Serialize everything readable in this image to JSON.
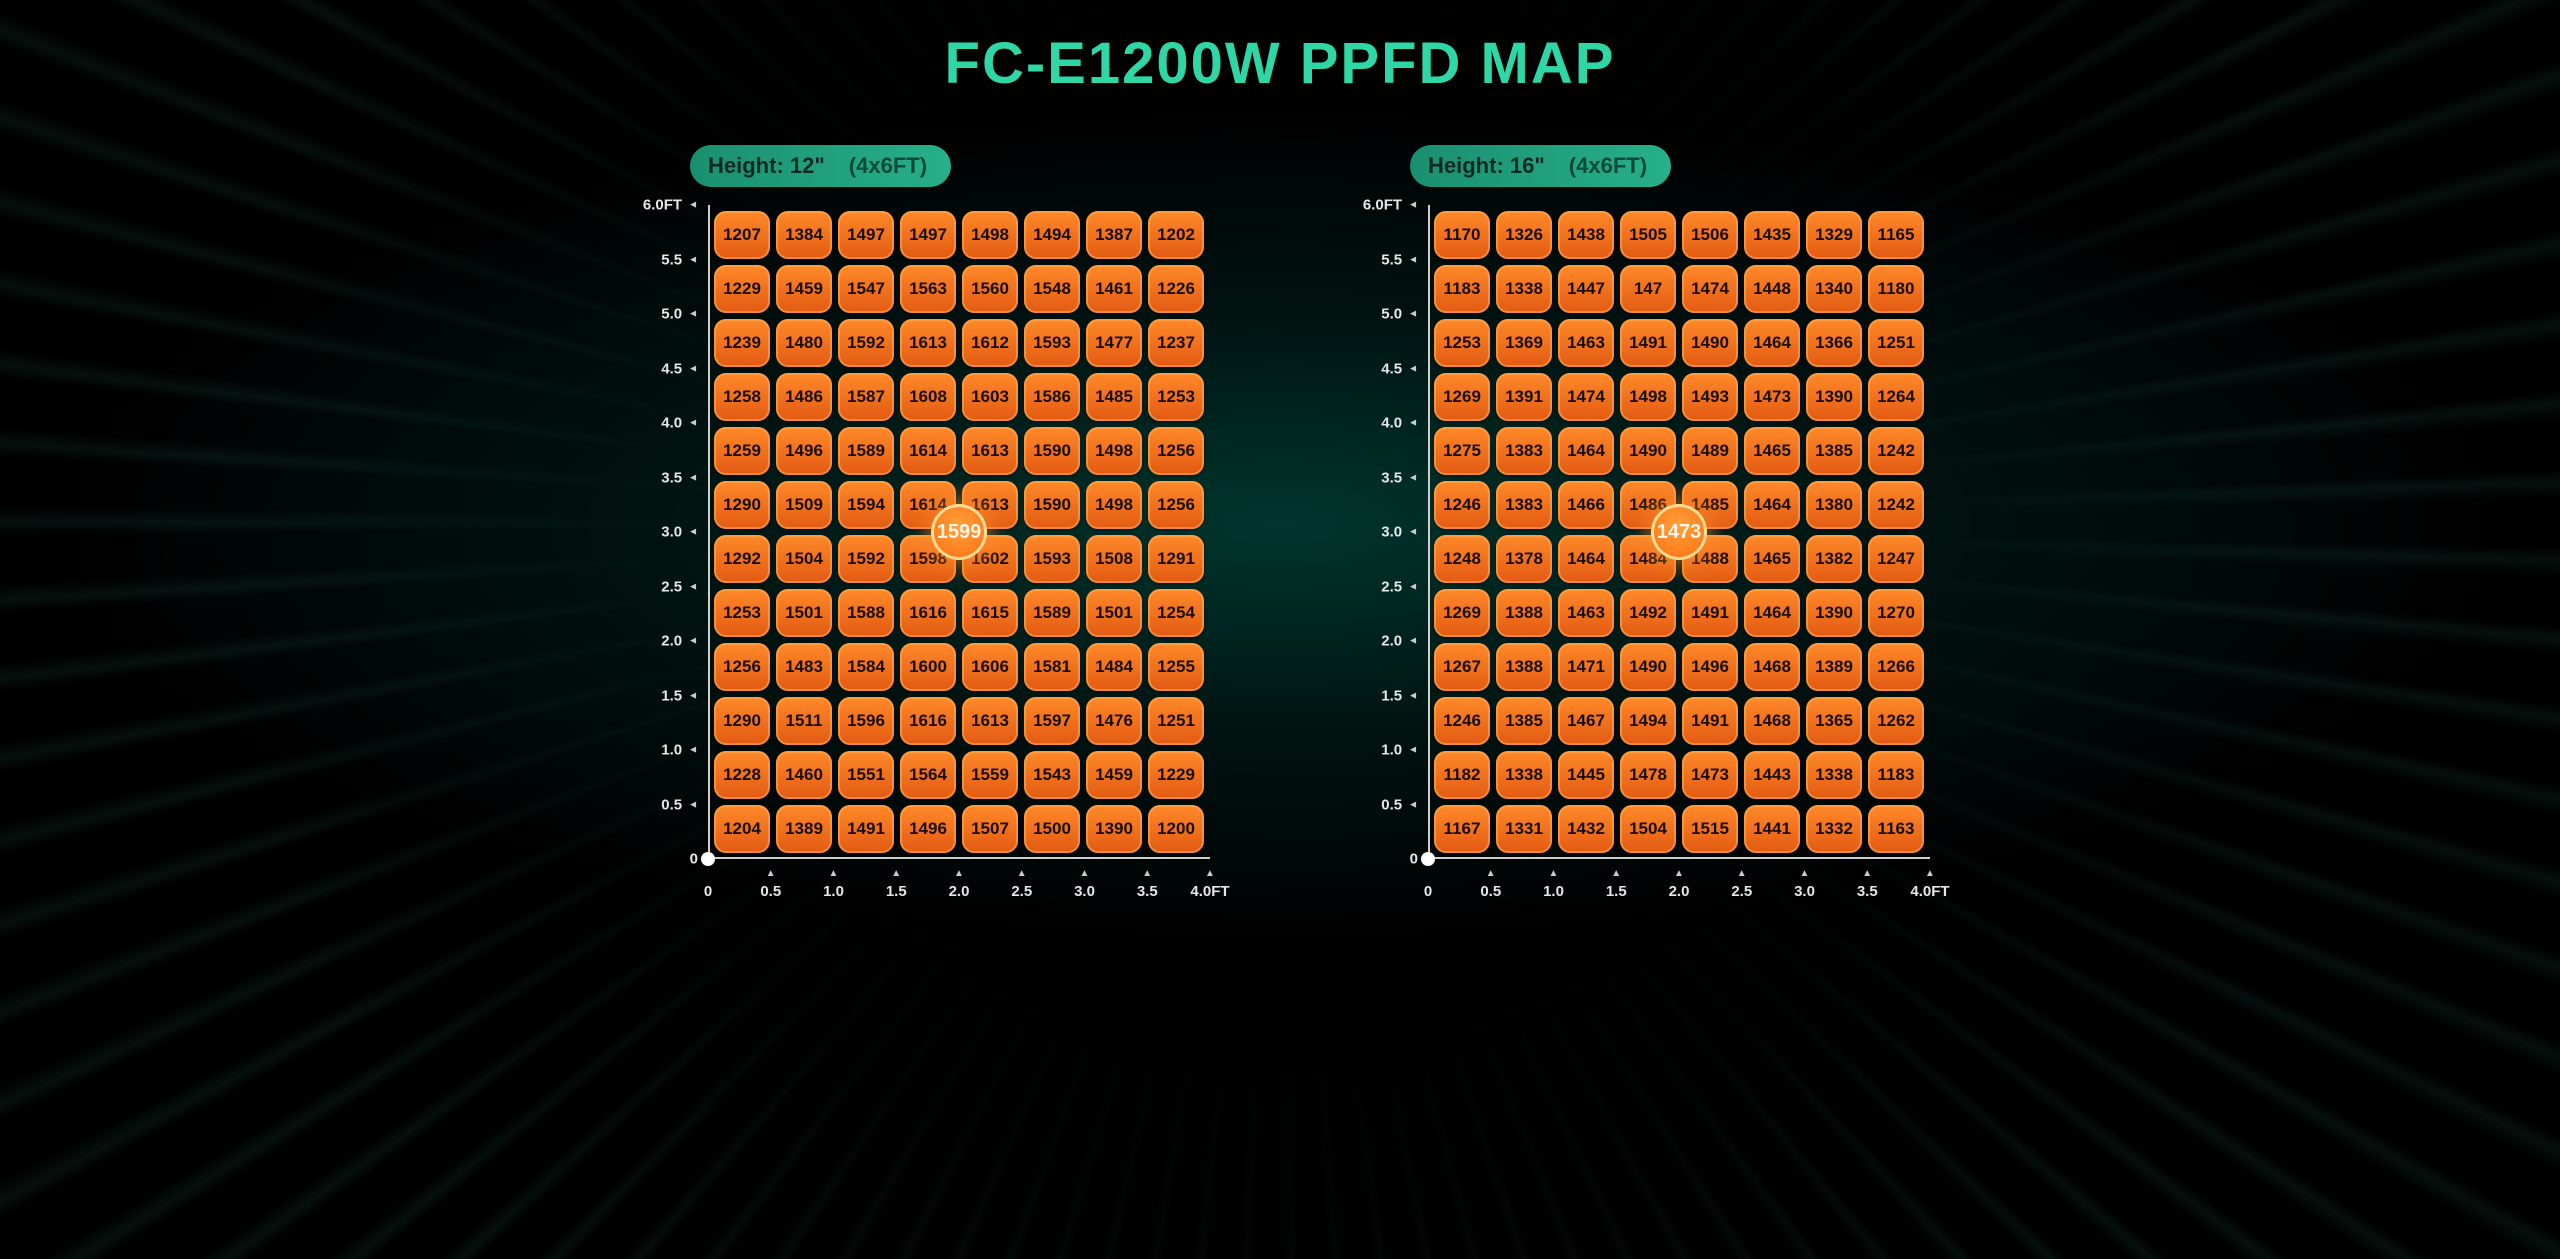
{
  "title": "FC-E1200W PPFD MAP",
  "title_color": "#2fd6a6",
  "title_fontsize": 58,
  "background": {
    "base": "#000000",
    "glow": "#0d3a32",
    "ray_color": "#4fc9a8"
  },
  "cell_style": {
    "width": 56,
    "height": 48,
    "radius": 12,
    "fill_top": "#ff8a2a",
    "fill_bottom": "#e25a12",
    "border": "#ffb060",
    "text_color": "#1a0e02",
    "fontsize": 17
  },
  "badge_style": {
    "bg_left": "#1a8f6f",
    "bg_right": "#27b08a",
    "text_bold": "#072a20",
    "text_dim": "#0b4a38",
    "fontsize": 22
  },
  "center_badge_style": {
    "size": 56,
    "fill_inner": "#ffa23a",
    "fill_outer": "#ff6a10",
    "text_color": "#fff6e8",
    "fontsize": 20
  },
  "axis": {
    "color": "#e6e6e6",
    "line_color": "#cfcfcf",
    "y_labels": [
      "6.0FT",
      "5.5",
      "5.0",
      "4.5",
      "4.0",
      "3.5",
      "3.0",
      "2.5",
      "2.0",
      "1.5",
      "1.0",
      "0.5",
      "0"
    ],
    "x_labels": [
      "0",
      "0.5",
      "1.0",
      "1.5",
      "2.0",
      "2.5",
      "3.0",
      "3.5",
      "4.0FT"
    ]
  },
  "panels": [
    {
      "badge_bold": "Height: 12\"",
      "badge_dim": "(4x6FT)",
      "center_value": "1599",
      "cols": 8,
      "rows": 12,
      "data": [
        [
          "1207",
          "1384",
          "1497",
          "1497",
          "1498",
          "1494",
          "1387",
          "1202"
        ],
        [
          "1229",
          "1459",
          "1547",
          "1563",
          "1560",
          "1548",
          "1461",
          "1226"
        ],
        [
          "1239",
          "1480",
          "1592",
          "1613",
          "1612",
          "1593",
          "1477",
          "1237"
        ],
        [
          "1258",
          "1486",
          "1587",
          "1608",
          "1603",
          "1586",
          "1485",
          "1253"
        ],
        [
          "1259",
          "1496",
          "1589",
          "1614",
          "1613",
          "1590",
          "1498",
          "1256"
        ],
        [
          "1290",
          "1509",
          "1594",
          "1614",
          "1613",
          "1590",
          "1498",
          "1256"
        ],
        [
          "1292",
          "1504",
          "1592",
          "1598",
          "1602",
          "1593",
          "1508",
          "1291"
        ],
        [
          "1253",
          "1501",
          "1588",
          "1616",
          "1615",
          "1589",
          "1501",
          "1254"
        ],
        [
          "1256",
          "1483",
          "1584",
          "1600",
          "1606",
          "1581",
          "1484",
          "1255"
        ],
        [
          "1290",
          "1511",
          "1596",
          "1616",
          "1613",
          "1597",
          "1476",
          "1251"
        ],
        [
          "1228",
          "1460",
          "1551",
          "1564",
          "1559",
          "1543",
          "1459",
          "1229"
        ],
        [
          "1204",
          "1389",
          "1491",
          "1496",
          "1507",
          "1500",
          "1390",
          "1200"
        ]
      ]
    },
    {
      "badge_bold": "Height: 16\"",
      "badge_dim": "(4x6FT)",
      "center_value": "1473",
      "cols": 8,
      "rows": 12,
      "data": [
        [
          "1170",
          "1326",
          "1438",
          "1505",
          "1506",
          "1435",
          "1329",
          "1165"
        ],
        [
          "1183",
          "1338",
          "1447",
          "147",
          "1474",
          "1448",
          "1340",
          "1180"
        ],
        [
          "1253",
          "1369",
          "1463",
          "1491",
          "1490",
          "1464",
          "1366",
          "1251"
        ],
        [
          "1269",
          "1391",
          "1474",
          "1498",
          "1493",
          "1473",
          "1390",
          "1264"
        ],
        [
          "1275",
          "1383",
          "1464",
          "1490",
          "1489",
          "1465",
          "1385",
          "1242"
        ],
        [
          "1246",
          "1383",
          "1466",
          "1486",
          "1485",
          "1464",
          "1380",
          "1242"
        ],
        [
          "1248",
          "1378",
          "1464",
          "1484",
          "1488",
          "1465",
          "1382",
          "1247"
        ],
        [
          "1269",
          "1388",
          "1463",
          "1492",
          "1491",
          "1464",
          "1390",
          "1270"
        ],
        [
          "1267",
          "1388",
          "1471",
          "1490",
          "1496",
          "1468",
          "1389",
          "1266"
        ],
        [
          "1246",
          "1385",
          "1467",
          "1494",
          "1491",
          "1468",
          "1365",
          "1262"
        ],
        [
          "1182",
          "1338",
          "1445",
          "1478",
          "1473",
          "1443",
          "1338",
          "1183"
        ],
        [
          "1167",
          "1331",
          "1432",
          "1504",
          "1515",
          "1441",
          "1332",
          "1163"
        ]
      ]
    }
  ]
}
